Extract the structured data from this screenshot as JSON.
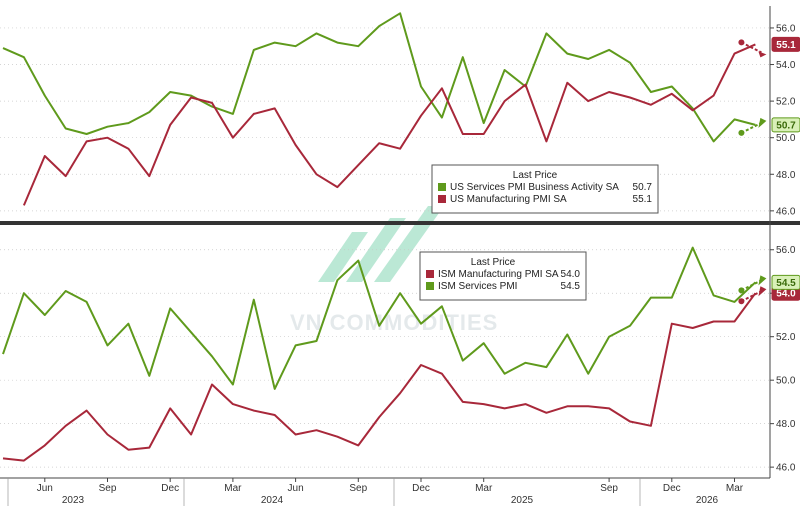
{
  "watermark": "VN COMMODITIES",
  "colors": {
    "green": "#5f9a1c",
    "red": "#a8283a",
    "axis": "#444444",
    "divider": "#333333",
    "watermark": "#3fbf8a"
  },
  "x_axis": {
    "months": [
      "Jun",
      "Sep",
      "Dec",
      "Mar",
      "Jun",
      "Sep",
      "Dec",
      "Mar",
      "Sep",
      "Dec",
      "Mar"
    ],
    "years": [
      "2023",
      "2024",
      "2025",
      "2026"
    ]
  },
  "chart_data": [
    {
      "type": "line",
      "panel": "top",
      "x_start": "2023-05",
      "x_end": "2026-04",
      "ylim": [
        45.5,
        57.2
      ],
      "yticks": [
        "56.0",
        "54.0",
        "52.0",
        "50.0",
        "48.0",
        "46.0"
      ],
      "legend": {
        "title": "Last Price",
        "placement": "center-right",
        "entries": [
          {
            "label": "US Services PMI Business Activity SA",
            "value": "50.7"
          },
          {
            "label": "US Manufacturing PMI SA",
            "value": "55.1"
          }
        ]
      },
      "series": [
        {
          "name": "US Services PMI Business Activity SA",
          "color": "#5f9a1c",
          "badge": "50.7",
          "arrow": "up",
          "values": [
            54.9,
            54.4,
            52.3,
            50.5,
            50.2,
            50.6,
            50.8,
            51.4,
            52.5,
            52.3,
            51.7,
            51.3,
            54.8,
            55.2,
            55.0,
            55.7,
            55.2,
            55.0,
            56.1,
            56.8,
            52.8,
            51.1,
            54.4,
            50.8,
            53.7,
            52.8,
            55.7,
            54.6,
            54.3,
            54.8,
            54.1,
            52.5,
            52.8,
            51.6,
            49.8,
            51.0,
            50.7
          ],
          "x": [
            "2023-04",
            "2023-05",
            "2023-06",
            "2023-07",
            "2023-08",
            "2023-09",
            "2023-10",
            "2023-11",
            "2023-12",
            "2024-01",
            "2024-02",
            "2024-03",
            "2024-04",
            "2024-05",
            "2024-06",
            "2024-07",
            "2024-08",
            "2024-09",
            "2024-10",
            "2024-11",
            "2024-12",
            "2025-01",
            "2025-02",
            "2025-03",
            "2025-04",
            "2025-05",
            "2025-06",
            "2025-07",
            "2025-08",
            "2025-09",
            "2025-10",
            "2025-11",
            "2025-12",
            "2026-01",
            "2026-02",
            "2026-03",
            "2026-04"
          ]
        },
        {
          "name": "US Manufacturing PMI SA",
          "color": "#a8283a",
          "badge": "55.1",
          "arrow": "down",
          "values": [
            46.3,
            49.0,
            47.9,
            49.8,
            50.0,
            49.4,
            47.9,
            50.7,
            52.2,
            51.9,
            50.0,
            51.3,
            51.6,
            49.6,
            48.0,
            47.3,
            48.5,
            49.7,
            49.4,
            51.2,
            52.7,
            50.2,
            50.2,
            52.0,
            52.9,
            49.8,
            53.0,
            52.0,
            52.5,
            52.2,
            51.8,
            52.4,
            51.5,
            52.3,
            54.6,
            55.1
          ],
          "x": [
            "2023-05",
            "2023-06",
            "2023-07",
            "2023-08",
            "2023-09",
            "2023-10",
            "2023-11",
            "2023-12",
            "2024-01",
            "2024-02",
            "2024-03",
            "2024-04",
            "2024-05",
            "2024-06",
            "2024-07",
            "2024-08",
            "2024-09",
            "2024-10",
            "2024-11",
            "2024-12",
            "2025-01",
            "2025-02",
            "2025-03",
            "2025-04",
            "2025-05",
            "2025-06",
            "2025-07",
            "2025-08",
            "2025-09",
            "2025-10",
            "2025-11",
            "2025-12",
            "2026-01",
            "2026-02",
            "2026-03",
            "2026-04"
          ]
        }
      ]
    },
    {
      "type": "line",
      "panel": "bottom",
      "x_start": "2023-05",
      "x_end": "2026-04",
      "ylim": [
        45.5,
        57.0
      ],
      "yticks": [
        "56.0",
        "54.0",
        "52.0",
        "50.0",
        "48.0",
        "46.0"
      ],
      "legend": {
        "title": "Last Price",
        "placement": "center-right",
        "entries": [
          {
            "label": "ISM Manufacturing PMI SA",
            "value": "54.0"
          },
          {
            "label": "ISM Services PMI",
            "value": "54.5"
          }
        ]
      },
      "series": [
        {
          "name": "ISM Manufacturing PMI SA",
          "color": "#a8283a",
          "badge": "54.0",
          "arrow": "up",
          "values": [
            46.4,
            46.3,
            47.0,
            47.9,
            48.6,
            47.5,
            46.8,
            46.9,
            48.7,
            47.5,
            49.8,
            48.9,
            48.6,
            48.4,
            47.5,
            47.7,
            47.4,
            47.0,
            48.3,
            49.4,
            50.7,
            50.3,
            49.0,
            48.9,
            48.7,
            48.9,
            48.5,
            48.8,
            48.8,
            48.7,
            48.1,
            47.9,
            52.6,
            52.4,
            52.7,
            52.7,
            54.0
          ],
          "x": [
            "2023-04",
            "2023-05",
            "2023-06",
            "2023-07",
            "2023-08",
            "2023-09",
            "2023-10",
            "2023-11",
            "2023-12",
            "2024-01",
            "2024-02",
            "2024-03",
            "2024-04",
            "2024-05",
            "2024-06",
            "2024-07",
            "2024-08",
            "2024-09",
            "2024-10",
            "2024-11",
            "2024-12",
            "2025-01",
            "2025-02",
            "2025-03",
            "2025-04",
            "2025-05",
            "2025-06",
            "2025-07",
            "2025-08",
            "2025-09",
            "2025-10",
            "2025-11",
            "2025-12",
            "2026-01",
            "2026-02",
            "2026-03",
            "2026-04"
          ]
        },
        {
          "name": "ISM Services PMI",
          "color": "#5f9a1c",
          "badge": "54.5",
          "arrow": "up",
          "values": [
            51.2,
            54.0,
            53.0,
            54.1,
            53.6,
            51.6,
            52.6,
            50.2,
            53.3,
            52.2,
            51.1,
            49.8,
            53.7,
            49.6,
            51.6,
            51.8,
            54.6,
            55.5,
            52.5,
            54.0,
            52.6,
            53.4,
            50.9,
            51.7,
            50.3,
            50.8,
            50.6,
            52.1,
            50.3,
            52.0,
            52.5,
            53.8,
            53.8,
            56.1,
            53.9,
            53.6,
            54.5
          ],
          "x": [
            "2023-04",
            "2023-05",
            "2023-06",
            "2023-07",
            "2023-08",
            "2023-09",
            "2023-10",
            "2023-11",
            "2023-12",
            "2024-01",
            "2024-02",
            "2024-03",
            "2024-04",
            "2024-05",
            "2024-06",
            "2024-07",
            "2024-08",
            "2024-09",
            "2024-10",
            "2024-11",
            "2024-12",
            "2025-01",
            "2025-02",
            "2025-03",
            "2025-04",
            "2025-05",
            "2025-06",
            "2025-07",
            "2025-08",
            "2025-09",
            "2025-10",
            "2025-11",
            "2025-12",
            "2026-01",
            "2026-02",
            "2026-03",
            "2026-04"
          ]
        }
      ]
    }
  ]
}
